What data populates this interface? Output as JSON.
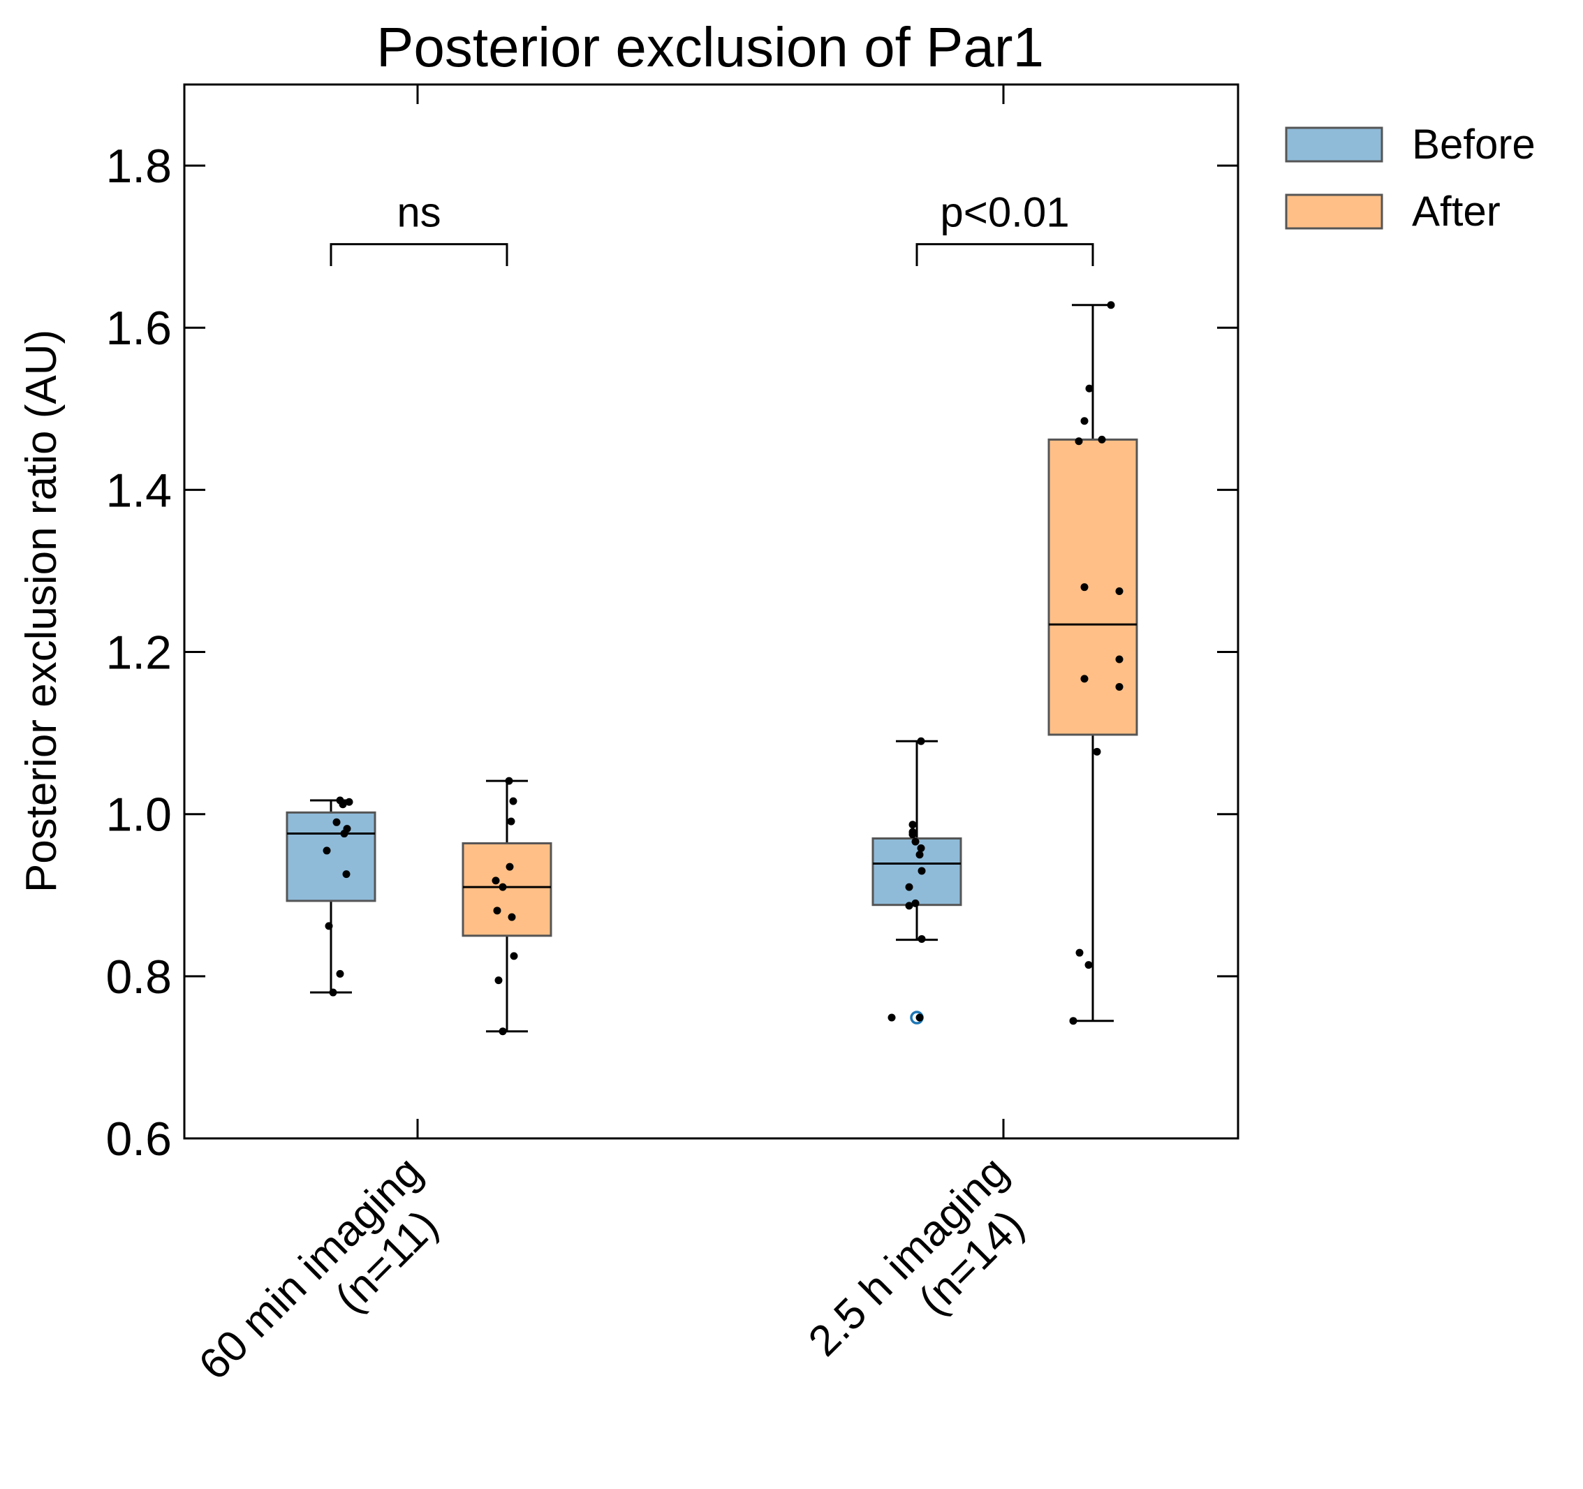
{
  "chart_data": {
    "type": "box",
    "title": "Posterior exclusion of Par1",
    "xlabel": "",
    "ylabel": "Posterior exclusion ratio (AU)",
    "ylim": [
      0.6,
      1.9
    ],
    "yticks": [
      "0.6",
      "0.8",
      "1.0",
      "1.2",
      "1.4",
      "1.6",
      "1.8"
    ],
    "grid": false,
    "legend_position": "outside-right-top",
    "categories": [
      {
        "line1": "60 min imaging",
        "line2": "(n=11)"
      },
      {
        "line1": "2.5 h imaging",
        "line2": "(n=14)"
      }
    ],
    "series": [
      {
        "name": "Before",
        "color": "#1f77b4",
        "boxes": [
          {
            "whisker_low": 0.78,
            "q1": 0.893,
            "median": 0.976,
            "q3": 1.002,
            "whisker_high": 1.017,
            "fliers": []
          },
          {
            "whisker_low": 0.845,
            "q1": 0.888,
            "median": 0.939,
            "q3": 0.97,
            "whisker_high": 1.09,
            "fliers": [
              0.749
            ]
          }
        ],
        "points": [
          [
            0.78,
            0.803,
            0.862,
            0.926,
            0.955,
            0.976,
            0.982,
            0.99,
            1.012,
            1.015,
            1.017
          ],
          [
            0.749,
            0.749,
            0.846,
            0.887,
            0.89,
            0.91,
            0.93,
            0.95,
            0.958,
            0.966,
            0.975,
            0.978,
            0.987,
            1.09
          ]
        ]
      },
      {
        "name": "After",
        "color": "#ff7f0e",
        "boxes": [
          {
            "whisker_low": 0.732,
            "q1": 0.85,
            "median": 0.91,
            "q3": 0.964,
            "whisker_high": 1.041,
            "fliers": []
          },
          {
            "whisker_low": 0.745,
            "q1": 1.098,
            "median": 1.234,
            "q3": 1.462,
            "whisker_high": 1.628,
            "fliers": []
          }
        ],
        "points": [
          [
            0.732,
            0.795,
            0.825,
            0.873,
            0.881,
            0.91,
            0.918,
            0.935,
            0.991,
            1.016,
            1.041
          ],
          [
            0.745,
            0.814,
            0.829,
            1.077,
            1.157,
            1.167,
            1.191,
            1.275,
            1.28,
            1.46,
            1.462,
            1.485,
            1.525,
            1.628
          ]
        ]
      }
    ],
    "annotations": [
      {
        "category": 0,
        "text": "ns",
        "bracket_y": 1.703,
        "bracket_drop": 0.027
      },
      {
        "category": 1,
        "text": "p<0.01",
        "bracket_y": 1.703,
        "bracket_drop": 0.027
      }
    ],
    "legend": [
      {
        "label": "Before",
        "color": "#1f77b4"
      },
      {
        "label": "After",
        "color": "#ff7f0e"
      }
    ]
  }
}
